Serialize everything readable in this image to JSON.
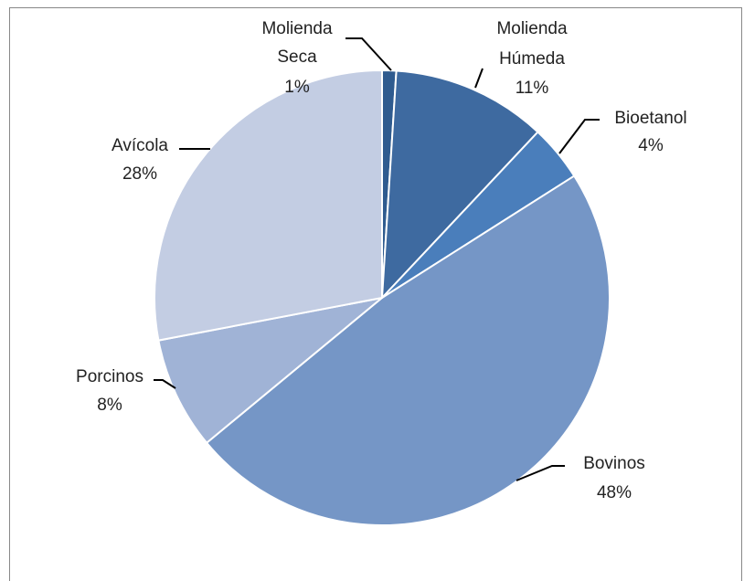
{
  "chart_data": {
    "type": "pie",
    "categories": [
      [
        "Molienda",
        "Seca"
      ],
      [
        "Molienda",
        "Húmeda"
      ],
      [
        "Bioetanol"
      ],
      [
        "Bovinos"
      ],
      [
        "Porcinos"
      ],
      [
        "Avícola"
      ]
    ],
    "values": [
      1,
      11,
      4,
      48,
      8,
      28
    ],
    "value_labels": [
      "1%",
      "11%",
      "4%",
      "48%",
      "8%",
      "28%"
    ],
    "colors": [
      "#2f5b8f",
      "#3e6aa0",
      "#4a7ebb",
      "#7596c6",
      "#a0b3d6",
      "#c3cde3"
    ]
  }
}
